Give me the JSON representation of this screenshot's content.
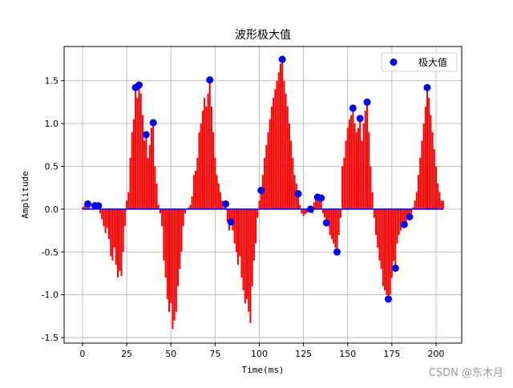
{
  "chart_data": {
    "type": "bar",
    "title": "波形极大值",
    "xlabel": "Time(ms)",
    "ylabel": "Amplitude",
    "watermark": "CSDN @东木月",
    "x": [
      0,
      1,
      2,
      3,
      4,
      5,
      6,
      7,
      8,
      9,
      10,
      11,
      12,
      13,
      14,
      15,
      16,
      17,
      18,
      19,
      20,
      21,
      22,
      23,
      24,
      25,
      26,
      27,
      28,
      29,
      30,
      31,
      32,
      33,
      34,
      35,
      36,
      37,
      38,
      39,
      40,
      41,
      42,
      43,
      44,
      45,
      46,
      47,
      48,
      49,
      50,
      51,
      52,
      53,
      54,
      55,
      56,
      57,
      58,
      59,
      60,
      61,
      62,
      63,
      64,
      65,
      66,
      67,
      68,
      69,
      70,
      71,
      72,
      73,
      74,
      75,
      76,
      77,
      78,
      79,
      80,
      81,
      82,
      83,
      84,
      85,
      86,
      87,
      88,
      89,
      90,
      91,
      92,
      93,
      94,
      95,
      96,
      97,
      98,
      99,
      100,
      101,
      102,
      103,
      104,
      105,
      106,
      107,
      108,
      109,
      110,
      111,
      112,
      113,
      114,
      115,
      116,
      117,
      118,
      119,
      120,
      121,
      122,
      123,
      124,
      125,
      126,
      127,
      128,
      129,
      130,
      131,
      132,
      133,
      134,
      135,
      136,
      137,
      138,
      139,
      140,
      141,
      142,
      143,
      144,
      145,
      146,
      147,
      148,
      149,
      150,
      151,
      152,
      153,
      154,
      155,
      156,
      157,
      158,
      159,
      160,
      161,
      162,
      163,
      164,
      165,
      166,
      167,
      168,
      169,
      170,
      171,
      172,
      173,
      174,
      175,
      176,
      177,
      178,
      179,
      180,
      181,
      182,
      183,
      184,
      185,
      186,
      187,
      188,
      189,
      190,
      191,
      192,
      193,
      194,
      195,
      196,
      197,
      198,
      199,
      200,
      201,
      202,
      203,
      204
    ],
    "values": [
      0.02,
      0.04,
      0.03,
      0.06,
      0.02,
      0.01,
      0.03,
      0.04,
      0.02,
      0.04,
      -0.05,
      -0.12,
      -0.2,
      -0.28,
      -0.22,
      -0.35,
      -0.55,
      -0.6,
      -0.45,
      -0.65,
      -0.8,
      -0.72,
      -0.78,
      -0.5,
      -0.2,
      0.1,
      0.2,
      0.6,
      0.9,
      1.05,
      1.42,
      1.3,
      1.45,
      1.35,
      1.1,
      0.8,
      0.87,
      0.6,
      0.75,
      0.95,
      1.01,
      0.5,
      0.3,
      0.05,
      -0.05,
      -0.2,
      -0.6,
      -0.8,
      -1.05,
      -1.2,
      -1.1,
      -1.4,
      -1.3,
      -1.2,
      -0.9,
      -0.7,
      -0.5,
      -0.2,
      -0.05,
      0.0,
      0.02,
      0.05,
      0.15,
      0.4,
      0.45,
      0.6,
      0.9,
      1.0,
      1.15,
      1.3,
      1.2,
      1.35,
      1.51,
      1.2,
      0.9,
      0.6,
      0.4,
      0.3,
      0.2,
      0.1,
      0.02,
      0.06,
      -0.15,
      -0.25,
      -0.15,
      -0.25,
      -0.4,
      -0.5,
      -0.65,
      -0.55,
      -0.8,
      -0.95,
      -1.1,
      -1.05,
      -1.2,
      -1.33,
      -0.9,
      -0.6,
      -0.4,
      -0.1,
      0.1,
      0.22,
      0.4,
      0.6,
      0.75,
      0.9,
      1.05,
      1.2,
      1.3,
      1.4,
      1.5,
      1.6,
      1.7,
      1.75,
      1.5,
      1.35,
      1.2,
      1.0,
      0.8,
      0.6,
      0.4,
      0.3,
      0.18,
      0.05,
      -0.05,
      -0.08,
      -0.06,
      -0.04,
      -0.02,
      0.0,
      -0.05,
      0.08,
      0.12,
      0.14,
      0.1,
      0.13,
      -0.05,
      -0.1,
      -0.16,
      -0.2,
      -0.3,
      -0.35,
      -0.4,
      -0.45,
      -0.5,
      -0.3,
      -0.1,
      0.5,
      0.6,
      0.8,
      0.95,
      1.05,
      1.1,
      1.18,
      1.0,
      0.9,
      0.95,
      1.06,
      0.8,
      1.0,
      1.15,
      1.25,
      0.9,
      0.5,
      0.2,
      -0.1,
      -0.3,
      -0.45,
      -0.6,
      -0.7,
      -0.9,
      -0.95,
      -1.0,
      -1.05,
      -1.0,
      -0.8,
      -0.6,
      -0.69,
      -0.4,
      -0.3,
      -0.25,
      -0.2,
      -0.18,
      -0.15,
      -0.1,
      -0.09,
      -0.05,
      0.02,
      0.1,
      0.2,
      0.4,
      0.6,
      0.8,
      1.0,
      1.2,
      1.42,
      1.3,
      1.1,
      0.9,
      0.7,
      0.5,
      0.3,
      0.2,
      0.1,
      0.1
    ],
    "color": "red",
    "baseline_color": "blue",
    "maxima": {
      "type": "scatter",
      "name": "极大值",
      "color": "blue",
      "x": [
        3,
        7,
        9,
        30,
        32,
        36,
        40,
        72,
        81,
        84,
        101,
        113,
        122,
        129,
        133,
        135,
        138,
        144,
        153,
        157,
        161,
        173,
        177,
        182,
        185,
        195
      ],
      "values": [
        0.06,
        0.04,
        0.04,
        1.42,
        1.45,
        0.87,
        1.01,
        1.51,
        0.06,
        -0.15,
        0.22,
        1.75,
        0.18,
        0.0,
        0.14,
        0.13,
        -0.16,
        -0.5,
        1.18,
        1.06,
        1.25,
        -1.05,
        -0.69,
        -0.18,
        -0.09,
        1.42
      ]
    },
    "xlim": [
      -10.4,
      214.5
    ],
    "ylim": [
      -1.565,
      1.9
    ],
    "xticks": [
      0,
      25,
      50,
      75,
      100,
      125,
      150,
      175,
      200
    ],
    "yticks": [
      {
        "value": -1.5,
        "label": "-1.5"
      },
      {
        "value": -1,
        "label": "-1.0"
      },
      -0.5,
      {
        "value": 0,
        "label": "0.0"
      },
      0.5,
      {
        "value": 1,
        "label": "1.0"
      },
      1.5
    ],
    "grid": true,
    "legend": "upper right"
  }
}
